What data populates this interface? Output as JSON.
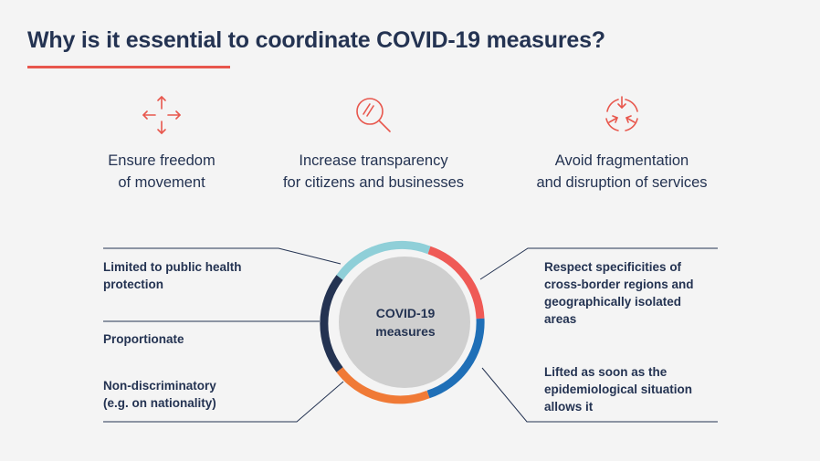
{
  "title": "Why is it essential to coordinate COVID-19 measures?",
  "accent_color": "#e8574d",
  "benefits": [
    {
      "icon": "arrows-out-icon",
      "line1": "Ensure freedom",
      "line2": "of movement"
    },
    {
      "icon": "magnifier-icon",
      "line1": "Increase transparency",
      "line2": "for citizens and businesses"
    },
    {
      "icon": "arrows-in-icon",
      "line1": "Avoid fragmentation",
      "line2": "and disruption of services"
    }
  ],
  "center": {
    "line1": "COVID-19",
    "line2": "measures"
  },
  "ring_colors": {
    "light_blue": "#8fcfd8",
    "red": "#ef5a56",
    "blue": "#1f6fb7",
    "orange": "#f07a36",
    "navy": "#243352",
    "inner": "#cfcfcf"
  },
  "left_items": [
    {
      "line1": "Limited to public health",
      "line2": "protection"
    },
    {
      "line1": "Proportionate",
      "line2": ""
    },
    {
      "line1": "Non-discriminatory",
      "line2": "(e.g. on nationality)"
    }
  ],
  "right_items": [
    {
      "line1": "Respect specificities of",
      "line2": "cross-border regions and",
      "line3": "geographically isolated",
      "line4": "areas"
    },
    {
      "line1": "Lifted as soon as the",
      "line2": "epidemiological situation",
      "line3": "allows it"
    }
  ]
}
